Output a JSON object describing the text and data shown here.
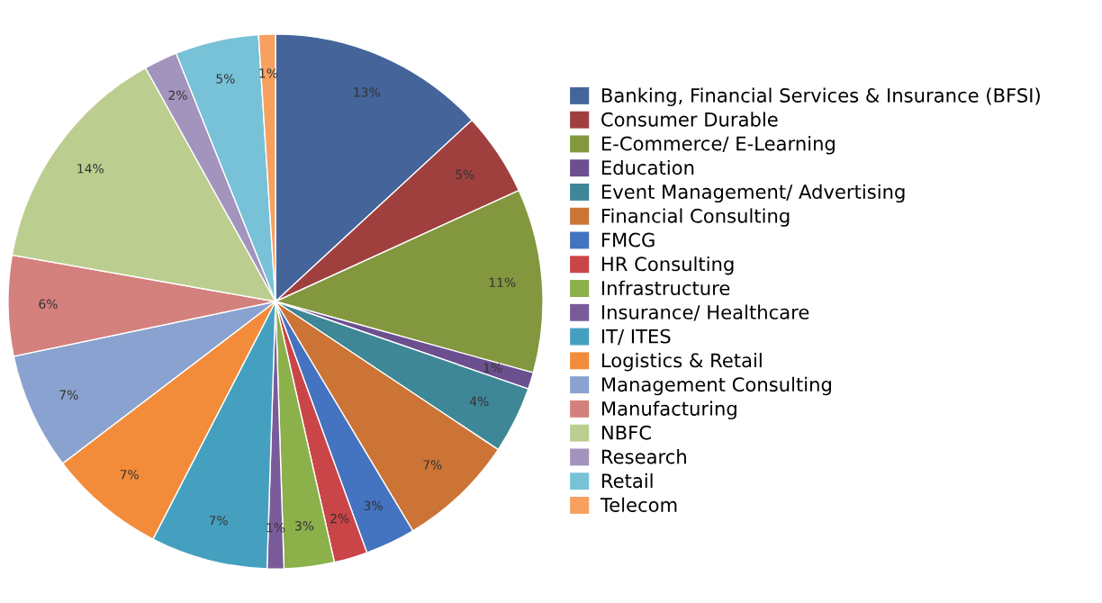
{
  "chart_data": {
    "type": "pie",
    "categories": [
      "Banking, Financial Services & Insurance (BFSI)",
      "Consumer Durable",
      "E-Commerce/ E-Learning",
      "Education",
      "Event Management/ Advertising",
      "Financial Consulting",
      "FMCG",
      "HR Consulting",
      "Infrastructure",
      "Insurance/ Healthcare",
      "IT/ ITES",
      "Logistics & Retail",
      "Management Consulting",
      "Manufacturing",
      "NBFC",
      "Research",
      "Retail",
      "Telecom"
    ],
    "values": [
      13,
      5,
      11,
      1,
      4,
      7,
      3,
      2,
      3,
      1,
      7,
      7,
      7,
      6,
      14,
      2,
      5,
      1
    ],
    "colors": [
      "#44649a",
      "#a0403e",
      "#83973f",
      "#6b4f8f",
      "#3d8796",
      "#cc7436",
      "#4473c0",
      "#c94548",
      "#8cb04a",
      "#7a5b9a",
      "#45a0c0",
      "#f28c3a",
      "#8aa2cf",
      "#d4807c",
      "#bcce8f",
      "#a294bd",
      "#78c2d8",
      "#f7a060"
    ],
    "value_labels": [
      "13%",
      "5%",
      "11%",
      "1%",
      "4%",
      "7%",
      "3%",
      "2%",
      "3%",
      "1%",
      "7%",
      "7%",
      "7%",
      "6%",
      "14%",
      "2%",
      "5%",
      "1%"
    ],
    "legend": "right"
  }
}
